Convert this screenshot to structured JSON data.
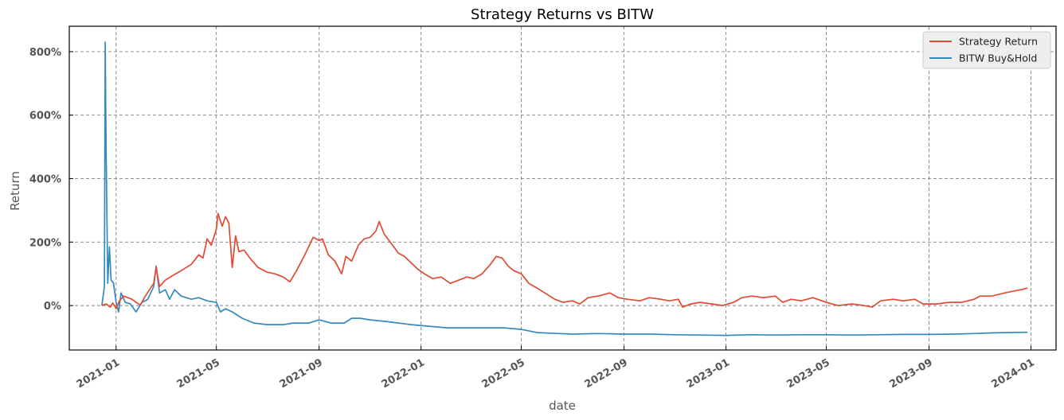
{
  "chart_data": {
    "type": "line",
    "title": "Strategy Returns vs BITW",
    "xlabel": "date",
    "ylabel": "Return",
    "ylim": [
      -140,
      880
    ],
    "y_ticks": [
      0,
      200,
      400,
      600,
      800
    ],
    "y_tick_labels": [
      "0%",
      "200%",
      "400%",
      "600%",
      "800%"
    ],
    "x_ticks": [
      "2021-01-01",
      "2021-05-01",
      "2021-09-01",
      "2022-01-01",
      "2022-05-01",
      "2022-09-01",
      "2023-01-01",
      "2023-05-01",
      "2023-09-01",
      "2024-01-01"
    ],
    "x_tick_labels": [
      "2021-01",
      "2021-05",
      "2021-09",
      "2022-01",
      "2022-05",
      "2022-09",
      "2023-01",
      "2023-05",
      "2023-09",
      "2024-01"
    ],
    "xlim": [
      "2020-11-06",
      "2024-01-31"
    ],
    "grid": true,
    "legend_position": "top-right",
    "series": [
      {
        "name": "Strategy Return",
        "color": "#e24a33",
        "points": [
          [
            "2020-12-15",
            0
          ],
          [
            "2020-12-20",
            5
          ],
          [
            "2020-12-25",
            -5
          ],
          [
            "2020-12-28",
            8
          ],
          [
            "2021-01-01",
            -10
          ],
          [
            "2021-01-05",
            15
          ],
          [
            "2021-01-10",
            30
          ],
          [
            "2021-01-15",
            25
          ],
          [
            "2021-01-20",
            20
          ],
          [
            "2021-01-25",
            10
          ],
          [
            "2021-01-30",
            2
          ],
          [
            "2021-02-05",
            30
          ],
          [
            "2021-02-10",
            50
          ],
          [
            "2021-02-15",
            70
          ],
          [
            "2021-02-18",
            120
          ],
          [
            "2021-02-22",
            60
          ],
          [
            "2021-03-01",
            80
          ],
          [
            "2021-03-10",
            95
          ],
          [
            "2021-03-20",
            110
          ],
          [
            "2021-04-01",
            130
          ],
          [
            "2021-04-10",
            160
          ],
          [
            "2021-04-15",
            150
          ],
          [
            "2021-04-20",
            210
          ],
          [
            "2021-04-25",
            190
          ],
          [
            "2021-05-01",
            240
          ],
          [
            "2021-05-03",
            290
          ],
          [
            "2021-05-08",
            250
          ],
          [
            "2021-05-12",
            280
          ],
          [
            "2021-05-16",
            260
          ],
          [
            "2021-05-20",
            120
          ],
          [
            "2021-05-24",
            220
          ],
          [
            "2021-05-28",
            170
          ],
          [
            "2021-06-03",
            175
          ],
          [
            "2021-06-10",
            150
          ],
          [
            "2021-06-20",
            120
          ],
          [
            "2021-07-01",
            105
          ],
          [
            "2021-07-10",
            100
          ],
          [
            "2021-07-20",
            90
          ],
          [
            "2021-07-28",
            75
          ],
          [
            "2021-08-05",
            110
          ],
          [
            "2021-08-15",
            160
          ],
          [
            "2021-08-25",
            215
          ],
          [
            "2021-09-01",
            205
          ],
          [
            "2021-09-05",
            210
          ],
          [
            "2021-09-12",
            160
          ],
          [
            "2021-09-20",
            140
          ],
          [
            "2021-09-28",
            100
          ],
          [
            "2021-10-03",
            155
          ],
          [
            "2021-10-10",
            140
          ],
          [
            "2021-10-18",
            190
          ],
          [
            "2021-10-25",
            210
          ],
          [
            "2021-11-01",
            215
          ],
          [
            "2021-11-08",
            235
          ],
          [
            "2021-11-12",
            265
          ],
          [
            "2021-11-18",
            225
          ],
          [
            "2021-11-25",
            200
          ],
          [
            "2021-12-05",
            165
          ],
          [
            "2021-12-12",
            155
          ],
          [
            "2021-12-20",
            135
          ],
          [
            "2021-12-28",
            115
          ],
          [
            "2022-01-05",
            100
          ],
          [
            "2022-01-15",
            85
          ],
          [
            "2022-01-25",
            90
          ],
          [
            "2022-02-05",
            70
          ],
          [
            "2022-02-15",
            80
          ],
          [
            "2022-02-25",
            90
          ],
          [
            "2022-03-05",
            85
          ],
          [
            "2022-03-15",
            100
          ],
          [
            "2022-03-25",
            130
          ],
          [
            "2022-04-01",
            155
          ],
          [
            "2022-04-08",
            150
          ],
          [
            "2022-04-15",
            125
          ],
          [
            "2022-04-22",
            110
          ],
          [
            "2022-05-01",
            100
          ],
          [
            "2022-05-10",
            70
          ],
          [
            "2022-05-20",
            55
          ],
          [
            "2022-06-01",
            35
          ],
          [
            "2022-06-10",
            20
          ],
          [
            "2022-06-20",
            10
          ],
          [
            "2022-07-01",
            15
          ],
          [
            "2022-07-10",
            5
          ],
          [
            "2022-07-20",
            25
          ],
          [
            "2022-08-01",
            30
          ],
          [
            "2022-08-15",
            40
          ],
          [
            "2022-08-25",
            25
          ],
          [
            "2022-09-05",
            20
          ],
          [
            "2022-09-20",
            15
          ],
          [
            "2022-10-01",
            25
          ],
          [
            "2022-10-15",
            20
          ],
          [
            "2022-10-25",
            15
          ],
          [
            "2022-11-05",
            20
          ],
          [
            "2022-11-10",
            -5
          ],
          [
            "2022-11-20",
            5
          ],
          [
            "2022-12-01",
            10
          ],
          [
            "2022-12-15",
            5
          ],
          [
            "2022-12-28",
            0
          ],
          [
            "2023-01-10",
            10
          ],
          [
            "2023-01-20",
            25
          ],
          [
            "2023-02-01",
            30
          ],
          [
            "2023-02-15",
            25
          ],
          [
            "2023-03-01",
            30
          ],
          [
            "2023-03-10",
            10
          ],
          [
            "2023-03-20",
            20
          ],
          [
            "2023-04-01",
            15
          ],
          [
            "2023-04-15",
            25
          ],
          [
            "2023-05-01",
            10
          ],
          [
            "2023-05-15",
            0
          ],
          [
            "2023-06-01",
            5
          ],
          [
            "2023-06-15",
            0
          ],
          [
            "2023-06-25",
            -5
          ],
          [
            "2023-07-05",
            15
          ],
          [
            "2023-07-20",
            20
          ],
          [
            "2023-08-01",
            15
          ],
          [
            "2023-08-15",
            20
          ],
          [
            "2023-08-25",
            5
          ],
          [
            "2023-09-10",
            5
          ],
          [
            "2023-09-25",
            10
          ],
          [
            "2023-10-10",
            10
          ],
          [
            "2023-10-25",
            20
          ],
          [
            "2023-11-01",
            30
          ],
          [
            "2023-11-15",
            30
          ],
          [
            "2023-12-01",
            40
          ],
          [
            "2023-12-10",
            45
          ],
          [
            "2023-12-20",
            50
          ],
          [
            "2023-12-28",
            55
          ]
        ]
      },
      {
        "name": "BITW Buy&Hold",
        "color": "#348abd",
        "points": [
          [
            "2020-12-15",
            0
          ],
          [
            "2020-12-18",
            60
          ],
          [
            "2020-12-19",
            830
          ],
          [
            "2020-12-20",
            500
          ],
          [
            "2020-12-22",
            70
          ],
          [
            "2020-12-24",
            185
          ],
          [
            "2020-12-26",
            80
          ],
          [
            "2020-12-29",
            70
          ],
          [
            "2021-01-01",
            10
          ],
          [
            "2021-01-04",
            -20
          ],
          [
            "2021-01-07",
            40
          ],
          [
            "2021-01-12",
            10
          ],
          [
            "2021-01-18",
            5
          ],
          [
            "2021-01-25",
            -20
          ],
          [
            "2021-02-01",
            10
          ],
          [
            "2021-02-08",
            20
          ],
          [
            "2021-02-15",
            60
          ],
          [
            "2021-02-18",
            125
          ],
          [
            "2021-02-22",
            40
          ],
          [
            "2021-03-01",
            50
          ],
          [
            "2021-03-06",
            20
          ],
          [
            "2021-03-12",
            50
          ],
          [
            "2021-03-20",
            30
          ],
          [
            "2021-04-01",
            20
          ],
          [
            "2021-04-10",
            25
          ],
          [
            "2021-04-20",
            15
          ],
          [
            "2021-05-01",
            10
          ],
          [
            "2021-05-06",
            -20
          ],
          [
            "2021-05-12",
            -10
          ],
          [
            "2021-05-20",
            -20
          ],
          [
            "2021-06-01",
            -40
          ],
          [
            "2021-06-15",
            -55
          ],
          [
            "2021-07-01",
            -60
          ],
          [
            "2021-07-20",
            -60
          ],
          [
            "2021-08-01",
            -55
          ],
          [
            "2021-08-20",
            -55
          ],
          [
            "2021-09-01",
            -45
          ],
          [
            "2021-09-15",
            -55
          ],
          [
            "2021-10-01",
            -55
          ],
          [
            "2021-10-10",
            -40
          ],
          [
            "2021-10-20",
            -40
          ],
          [
            "2021-11-01",
            -45
          ],
          [
            "2021-11-20",
            -50
          ],
          [
            "2021-12-05",
            -55
          ],
          [
            "2021-12-20",
            -60
          ],
          [
            "2022-01-10",
            -65
          ],
          [
            "2022-02-01",
            -70
          ],
          [
            "2022-03-01",
            -70
          ],
          [
            "2022-03-20",
            -70
          ],
          [
            "2022-04-10",
            -70
          ],
          [
            "2022-05-01",
            -75
          ],
          [
            "2022-05-20",
            -85
          ],
          [
            "2022-06-15",
            -88
          ],
          [
            "2022-07-01",
            -90
          ],
          [
            "2022-08-01",
            -88
          ],
          [
            "2022-09-01",
            -90
          ],
          [
            "2022-10-01",
            -90
          ],
          [
            "2022-11-01",
            -92
          ],
          [
            "2022-12-01",
            -93
          ],
          [
            "2023-01-01",
            -94
          ],
          [
            "2023-02-01",
            -92
          ],
          [
            "2023-03-01",
            -93
          ],
          [
            "2023-04-01",
            -92
          ],
          [
            "2023-05-01",
            -92
          ],
          [
            "2023-06-01",
            -93
          ],
          [
            "2023-07-01",
            -92
          ],
          [
            "2023-08-01",
            -91
          ],
          [
            "2023-09-01",
            -91
          ],
          [
            "2023-10-01",
            -90
          ],
          [
            "2023-10-25",
            -88
          ],
          [
            "2023-11-15",
            -86
          ],
          [
            "2023-12-01",
            -85
          ],
          [
            "2023-12-28",
            -84
          ]
        ]
      }
    ]
  }
}
